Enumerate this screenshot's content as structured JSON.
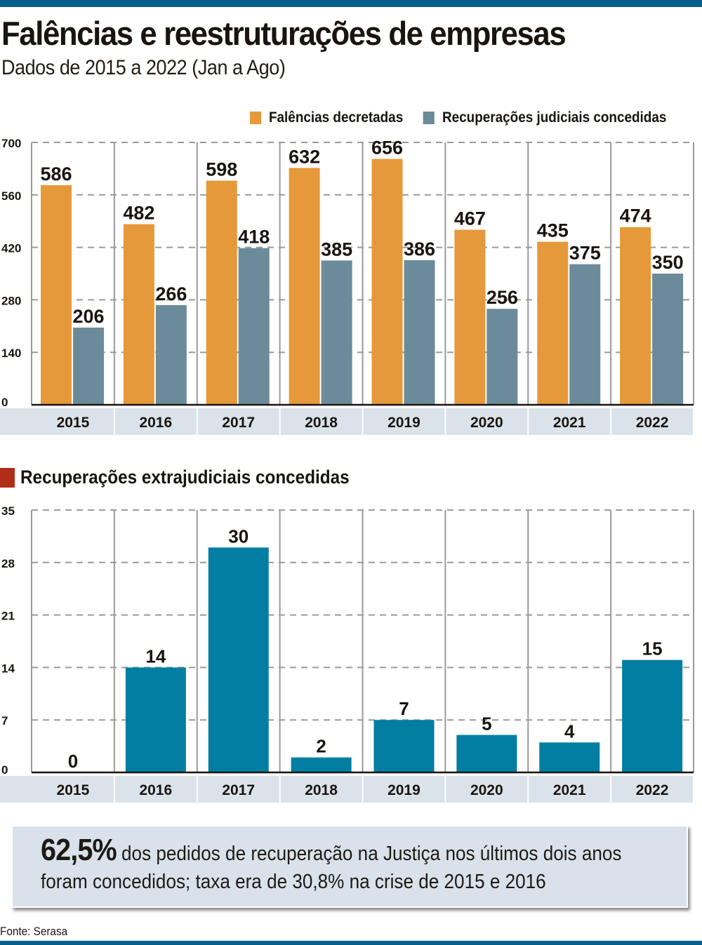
{
  "header": {
    "title": "Falências e reestruturações de empresas",
    "subtitle": "Dados de 2015 a 2022 (Jan a Ago)"
  },
  "colors": {
    "accent_bar": "#04608a",
    "falencias": "#e6993a",
    "recuperacoes_judiciais": "#6b8b9a",
    "extrajudiciais": "#037ea3",
    "section_marker": "#b02d18",
    "label_band": "#dbe3ea"
  },
  "chart_data": [
    {
      "type": "bar",
      "title": "Falências e reestruturações de empresas",
      "categories": [
        "2015",
        "2016",
        "2017",
        "2018",
        "2019",
        "2020",
        "2021",
        "2022"
      ],
      "series": [
        {
          "name": "Falências decretadas",
          "values": [
            586,
            482,
            598,
            632,
            656,
            467,
            435,
            474
          ]
        },
        {
          "name": "Recuperações judiciais concedidas",
          "values": [
            206,
            266,
            418,
            385,
            386,
            256,
            375,
            350
          ]
        }
      ],
      "yticks": [
        "0",
        "140",
        "280",
        "420",
        "560",
        "700"
      ],
      "ylim": [
        0,
        700
      ],
      "xlabel": "",
      "ylabel": "",
      "grid": true,
      "legend": "top-right"
    },
    {
      "type": "bar",
      "title": "Recuperações extrajudiciais concedidas",
      "categories": [
        "2015",
        "2016",
        "2017",
        "2018",
        "2019",
        "2020",
        "2021",
        "2022"
      ],
      "series": [
        {
          "name": "Recuperações extrajudiciais concedidas",
          "values": [
            0,
            14,
            30,
            2,
            7,
            5,
            4,
            15
          ]
        }
      ],
      "yticks": [
        "0",
        "7",
        "14",
        "21",
        "28",
        "35"
      ],
      "ylim": [
        0,
        35
      ],
      "xlabel": "",
      "ylabel": "",
      "grid": true,
      "legend": "none"
    }
  ],
  "legend": {
    "items": [
      {
        "label": "Falências decretadas"
      },
      {
        "label": "Recuperações judiciais concedidas"
      }
    ]
  },
  "section2": {
    "title": "Recuperações extrajudiciais concedidas"
  },
  "callout": {
    "highlight": "62,5%",
    "text": "dos pedidos de recuperação na Justiça nos últimos dois anos foram concedidos; taxa era de 30,8% na crise de 2015 e 2016"
  },
  "footer": {
    "source": "Fonte: Serasa"
  }
}
